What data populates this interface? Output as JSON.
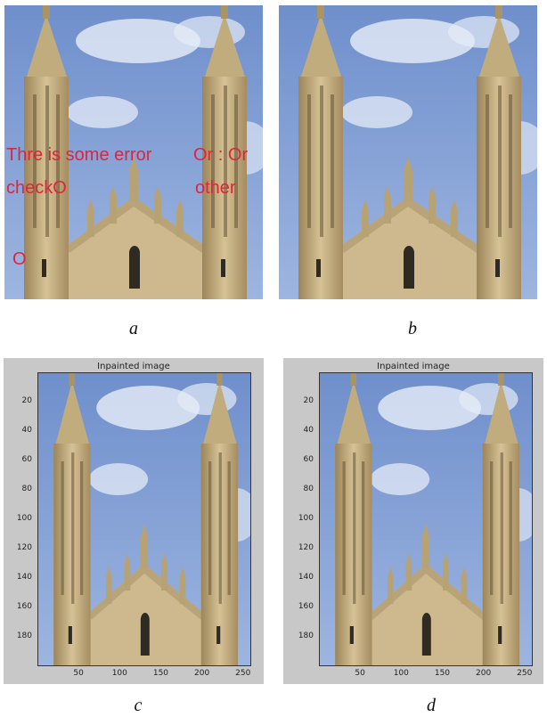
{
  "panels": {
    "a": {
      "caption": "a",
      "overlay_lines": [
        "Thre is some error",
        "checkO",
        "O",
        "Or  : Or",
        "other"
      ]
    },
    "b": {
      "caption": "b"
    },
    "c": {
      "caption": "c",
      "plot_title": "Inpainted image",
      "yticks": [
        "20",
        "40",
        "60",
        "80",
        "100",
        "120",
        "140",
        "160",
        "180"
      ],
      "xticks": [
        "50",
        "100",
        "150",
        "200",
        "250"
      ]
    },
    "d": {
      "caption": "d",
      "plot_title": "Inpainted image",
      "yticks": [
        "20",
        "40",
        "60",
        "80",
        "100",
        "120",
        "140",
        "160",
        "180"
      ],
      "xticks": [
        "50",
        "100",
        "150",
        "200",
        "250"
      ]
    }
  },
  "colors": {
    "sky": "#7f9fd3",
    "stone": "#c9b48a",
    "overlay_text": "#e0243a",
    "figure_bg": "#c8c8c8"
  }
}
